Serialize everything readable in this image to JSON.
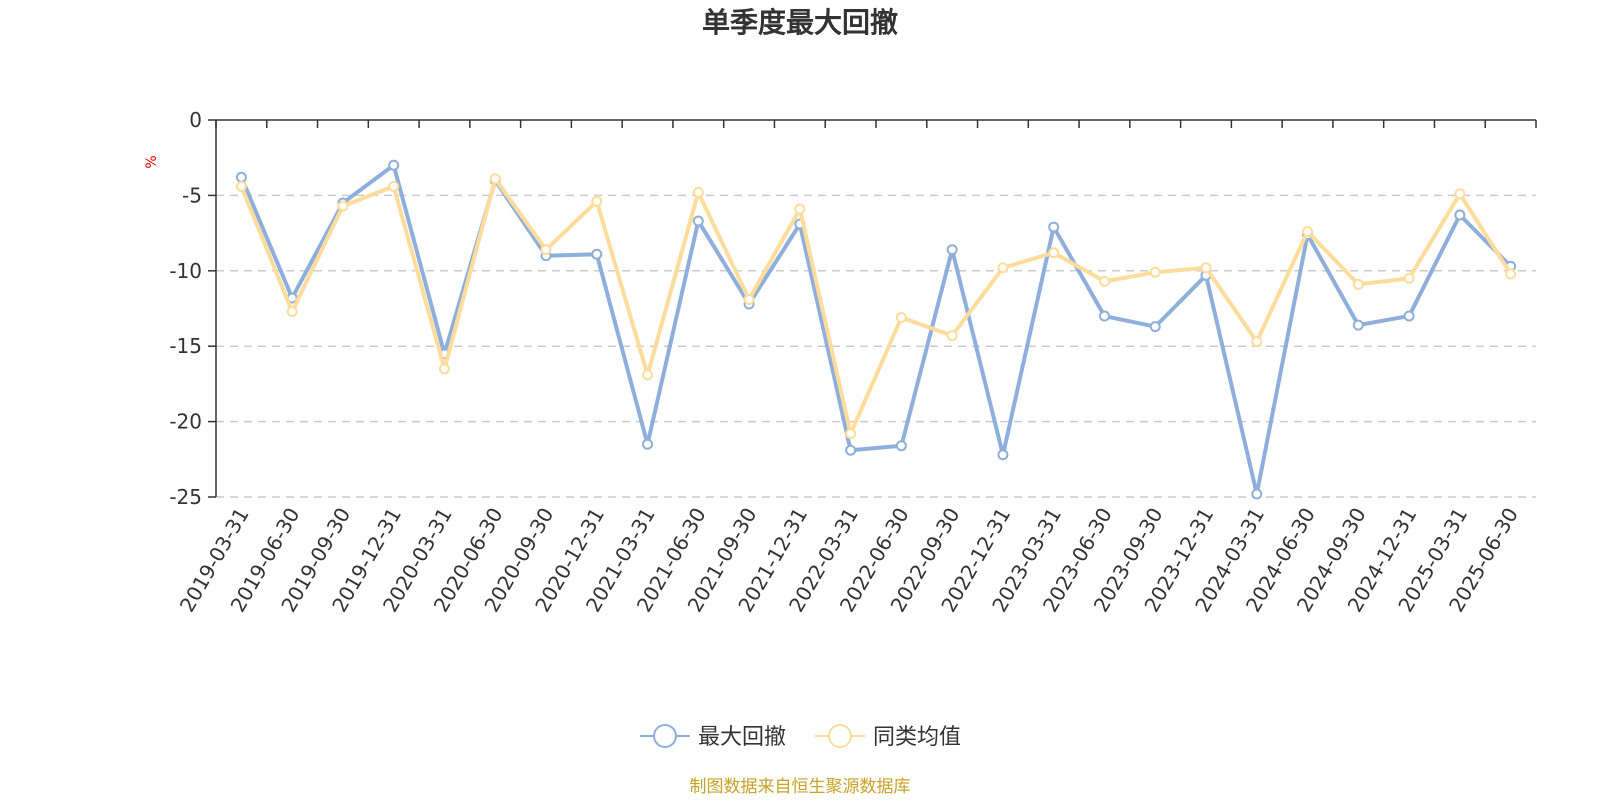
{
  "chart_data": {
    "type": "line",
    "title": "单季度最大回撤",
    "ylabel": "%",
    "ylim": [
      -25,
      0
    ],
    "yticks": [
      0,
      -5,
      -10,
      -15,
      -20,
      -25
    ],
    "grid": true,
    "legend_position": "bottom-center",
    "categories": [
      "2019-03-31",
      "2019-06-30",
      "2019-09-30",
      "2019-12-31",
      "2020-03-31",
      "2020-06-30",
      "2020-09-30",
      "2020-12-31",
      "2021-03-31",
      "2021-06-30",
      "2021-09-30",
      "2021-12-31",
      "2022-03-31",
      "2022-06-30",
      "2022-09-30",
      "2022-12-31",
      "2023-03-31",
      "2023-06-30",
      "2023-09-30",
      "2023-12-31",
      "2024-03-31",
      "2024-06-30",
      "2024-09-30",
      "2024-12-31",
      "2025-03-31",
      "2025-06-30"
    ],
    "series": [
      {
        "name": "最大回撤",
        "color": "#8eaedb",
        "values": [
          -3.8,
          -11.8,
          -5.5,
          -3.0,
          -15.5,
          -4.0,
          -9.0,
          -8.9,
          -21.5,
          -6.7,
          -12.2,
          -6.9,
          -21.9,
          -21.6,
          -8.6,
          -22.2,
          -7.1,
          -13.0,
          -13.7,
          -10.3,
          -24.8,
          -7.6,
          -13.6,
          -13.0,
          -6.3,
          -9.7
        ]
      },
      {
        "name": "同类均值",
        "color": "#fddc9c",
        "values": [
          -4.4,
          -12.7,
          -5.7,
          -4.4,
          -16.5,
          -3.9,
          -8.6,
          -5.4,
          -16.9,
          -4.8,
          -11.9,
          -5.9,
          -20.8,
          -13.1,
          -14.3,
          -9.8,
          -8.8,
          -10.7,
          -10.1,
          -9.8,
          -14.7,
          -7.4,
          -10.9,
          -10.5,
          -4.9,
          -10.2
        ]
      }
    ]
  },
  "source": {
    "text": "制图数据来自恒生聚源数据库",
    "color": "#c9a227"
  },
  "colors": {
    "axis": "#333333",
    "grid": "#cccccc"
  }
}
